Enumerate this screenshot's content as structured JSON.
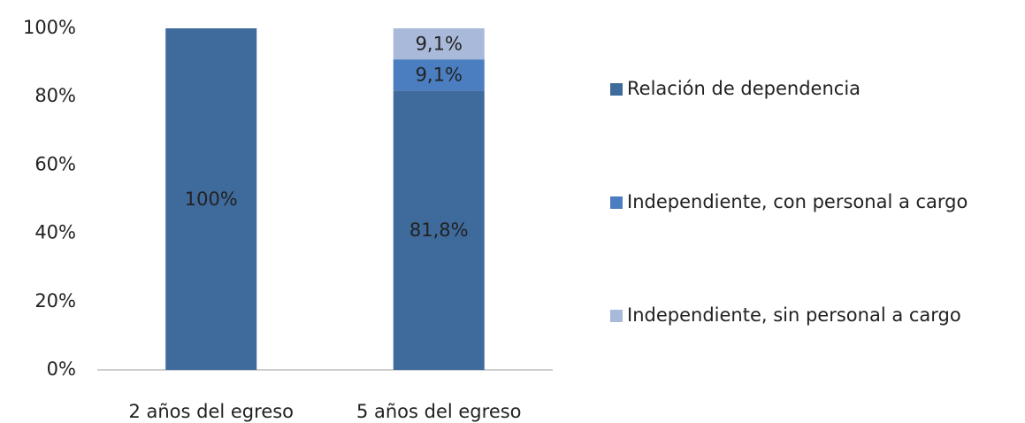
{
  "chart_data": {
    "type": "stacked_bar",
    "categories": [
      "2 años del egreso",
      "5 años del egreso"
    ],
    "series": [
      {
        "name": "Relación de dependencia",
        "color": "#3f6a9c",
        "values": [
          100,
          81.8
        ],
        "value_labels": [
          "100%",
          "81,8%"
        ]
      },
      {
        "name": "Independiente, con personal a cargo",
        "color": "#4a7ec0",
        "values": [
          null,
          9.1
        ],
        "value_labels": [
          null,
          "9,1%"
        ]
      },
      {
        "name": "Independiente, sin personal a cargo",
        "color": "#a9b9d9",
        "values": [
          null,
          9.1
        ],
        "value_labels": [
          null,
          "9,1%"
        ]
      }
    ],
    "ylim": [
      0,
      100
    ],
    "yticks": [
      {
        "value": 0,
        "label": "0%"
      },
      {
        "value": 20,
        "label": "20%"
      },
      {
        "value": 40,
        "label": "40%"
      },
      {
        "value": 60,
        "label": "60%"
      },
      {
        "value": 80,
        "label": "80%"
      },
      {
        "value": 100,
        "label": "100%"
      }
    ],
    "grid": false,
    "legend": "right"
  }
}
